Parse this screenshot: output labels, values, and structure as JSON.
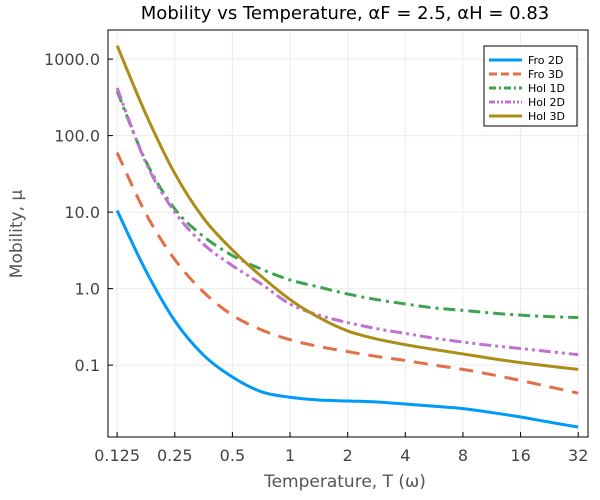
{
  "chart_data": {
    "type": "line",
    "title": "Mobility vs Temperature, αF = 2.5, αH = 0.83",
    "xlabel": "Temperature, T (ω)",
    "ylabel": "Mobility, μ",
    "xscale": "log2",
    "yscale": "log10",
    "xlim": [
      0.112,
      36
    ],
    "ylim": [
      0.0115,
      2400
    ],
    "xticks": [
      {
        "value": 0.125,
        "label": "0.125"
      },
      {
        "value": 0.25,
        "label": "0.25"
      },
      {
        "value": 0.5,
        "label": "0.5"
      },
      {
        "value": 1,
        "label": "1"
      },
      {
        "value": 2,
        "label": "2"
      },
      {
        "value": 4,
        "label": "4"
      },
      {
        "value": 8,
        "label": "8"
      },
      {
        "value": 16,
        "label": "16"
      },
      {
        "value": 32,
        "label": "32"
      }
    ],
    "yticks": [
      {
        "value": 0.1,
        "label": "0.1"
      },
      {
        "value": 1,
        "label": "1.0"
      },
      {
        "value": 10,
        "label": "10.0"
      },
      {
        "value": 100,
        "label": "100.0"
      },
      {
        "value": 1000,
        "label": "1000.0"
      }
    ],
    "grid": true,
    "legend_position": "top-right",
    "x": [
      0.125,
      0.1768,
      0.25,
      0.3536,
      0.5,
      0.7071,
      1,
      1.414,
      2,
      2.828,
      4,
      5.657,
      8,
      11.31,
      16,
      22.63,
      32
    ],
    "series": [
      {
        "name": "Fro 2D",
        "color": "#009AFA",
        "dash": "solid",
        "values": [
          10.5,
          1.7,
          0.38,
          0.135,
          0.07,
          0.045,
          0.038,
          0.035,
          0.034,
          0.033,
          0.031,
          0.029,
          0.027,
          0.024,
          0.021,
          0.018,
          0.0155
        ]
      },
      {
        "name": "Fro 3D",
        "color": "#E26F46",
        "dash": "long",
        "values": [
          60,
          9.5,
          2.4,
          0.9,
          0.45,
          0.29,
          0.215,
          0.175,
          0.15,
          0.13,
          0.115,
          0.1,
          0.088,
          0.075,
          0.063,
          0.052,
          0.043
        ]
      },
      {
        "name": "Hol 1D",
        "color": "#3DA44D",
        "dash": "dashdot",
        "values": [
          380,
          46,
          11,
          4.8,
          2.7,
          1.8,
          1.3,
          1.05,
          0.85,
          0.72,
          0.63,
          0.56,
          0.52,
          0.48,
          0.45,
          0.43,
          0.42
        ]
      },
      {
        "name": "Hol 2D",
        "color": "#C271D2",
        "dash": "dashdotdot",
        "values": [
          420,
          44,
          10,
          3.8,
          2.0,
          1.15,
          0.63,
          0.45,
          0.36,
          0.3,
          0.26,
          0.225,
          0.2,
          0.18,
          0.165,
          0.15,
          0.137
        ]
      },
      {
        "name": "Hol 3D",
        "color": "#AC8D18",
        "dash": "solid",
        "values": [
          1500,
          190,
          32,
          8.3,
          3.2,
          1.45,
          0.72,
          0.42,
          0.28,
          0.22,
          0.185,
          0.16,
          0.14,
          0.122,
          0.108,
          0.097,
          0.088
        ]
      }
    ]
  }
}
